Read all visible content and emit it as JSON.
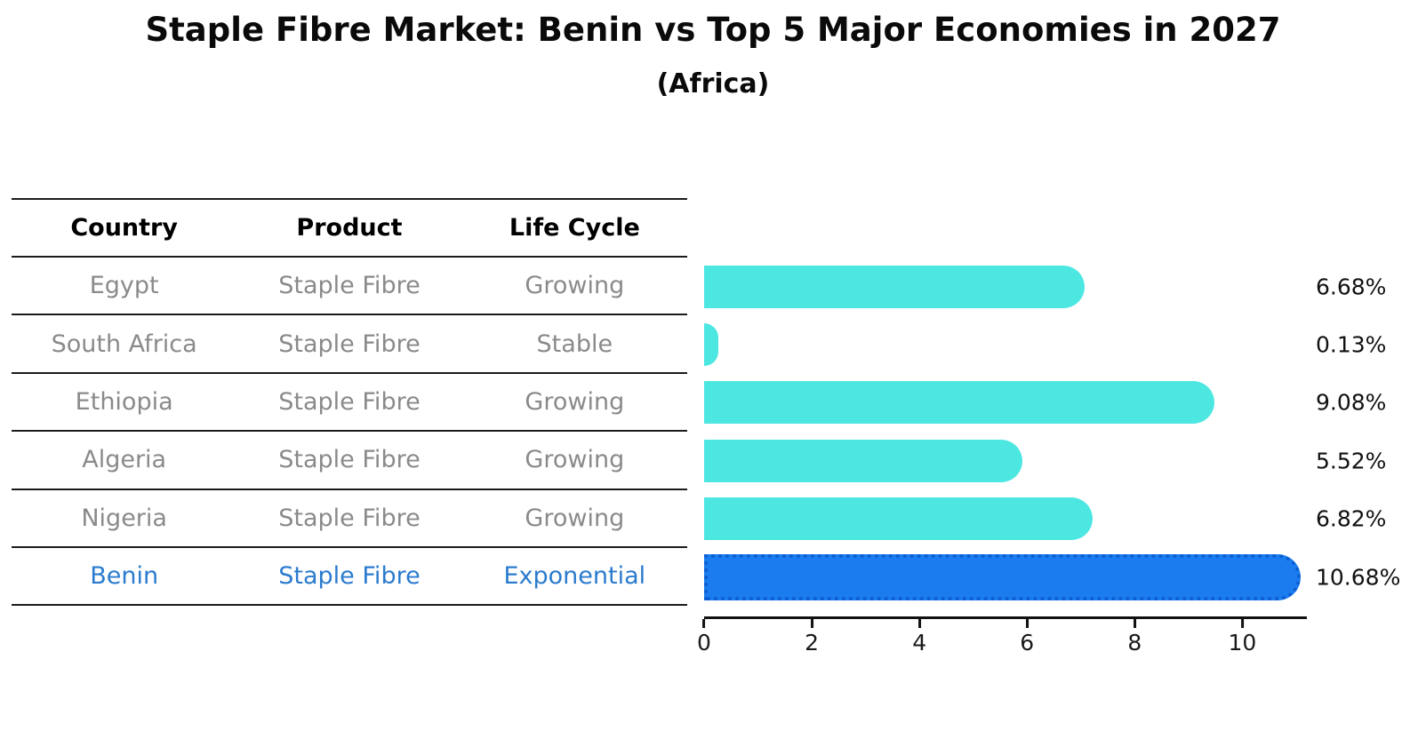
{
  "title": "Staple Fibre Market: Benin vs Top 5 Major Economies in 2027",
  "subtitle": "(Africa)",
  "table": {
    "headers": {
      "country": "Country",
      "product": "Product",
      "life_cycle": "Life Cycle"
    }
  },
  "colors": {
    "bar": "#4de7e2",
    "highlight_bar": "#1b7cef",
    "highlight_border": "#0c5ed2",
    "highlight_text": "#2b7bce",
    "row_text": "#8a8a8a",
    "line": "#1b1b1b"
  },
  "chart_data": {
    "type": "bar",
    "orientation": "horizontal",
    "title": "Staple Fibre Market: Benin vs Top 5 Major Economies in 2027",
    "subtitle": "(Africa)",
    "xlabel": "",
    "ylabel": "",
    "grid": false,
    "legend": "none",
    "xlim": [
      0,
      11.2
    ],
    "x_ticks": [
      0,
      2,
      4,
      6,
      8,
      10
    ],
    "categories": [
      "Egypt",
      "South Africa",
      "Ethiopia",
      "Algeria",
      "Nigeria",
      "Benin"
    ],
    "values": [
      6.68,
      0.13,
      9.08,
      5.52,
      6.82,
      10.68
    ],
    "rows": [
      {
        "country": "Egypt",
        "product": "Staple Fibre",
        "life_cycle": "Growing",
        "value": 6.68,
        "value_label": "6.68%",
        "highlight": false
      },
      {
        "country": "South Africa",
        "product": "Staple Fibre",
        "life_cycle": "Stable",
        "value": 0.13,
        "value_label": "0.13%",
        "highlight": false
      },
      {
        "country": "Ethiopia",
        "product": "Staple Fibre",
        "life_cycle": "Growing",
        "value": 9.08,
        "value_label": "9.08%",
        "highlight": false
      },
      {
        "country": "Algeria",
        "product": "Staple Fibre",
        "life_cycle": "Growing",
        "value": 5.52,
        "value_label": "5.52%",
        "highlight": false
      },
      {
        "country": "Nigeria",
        "product": "Staple Fibre",
        "life_cycle": "Growing",
        "value": 6.82,
        "value_label": "6.82%",
        "highlight": false
      },
      {
        "country": "Benin",
        "product": "Staple Fibre",
        "life_cycle": "Exponential",
        "value": 10.68,
        "value_label": "10.68%",
        "highlight": true
      }
    ]
  }
}
